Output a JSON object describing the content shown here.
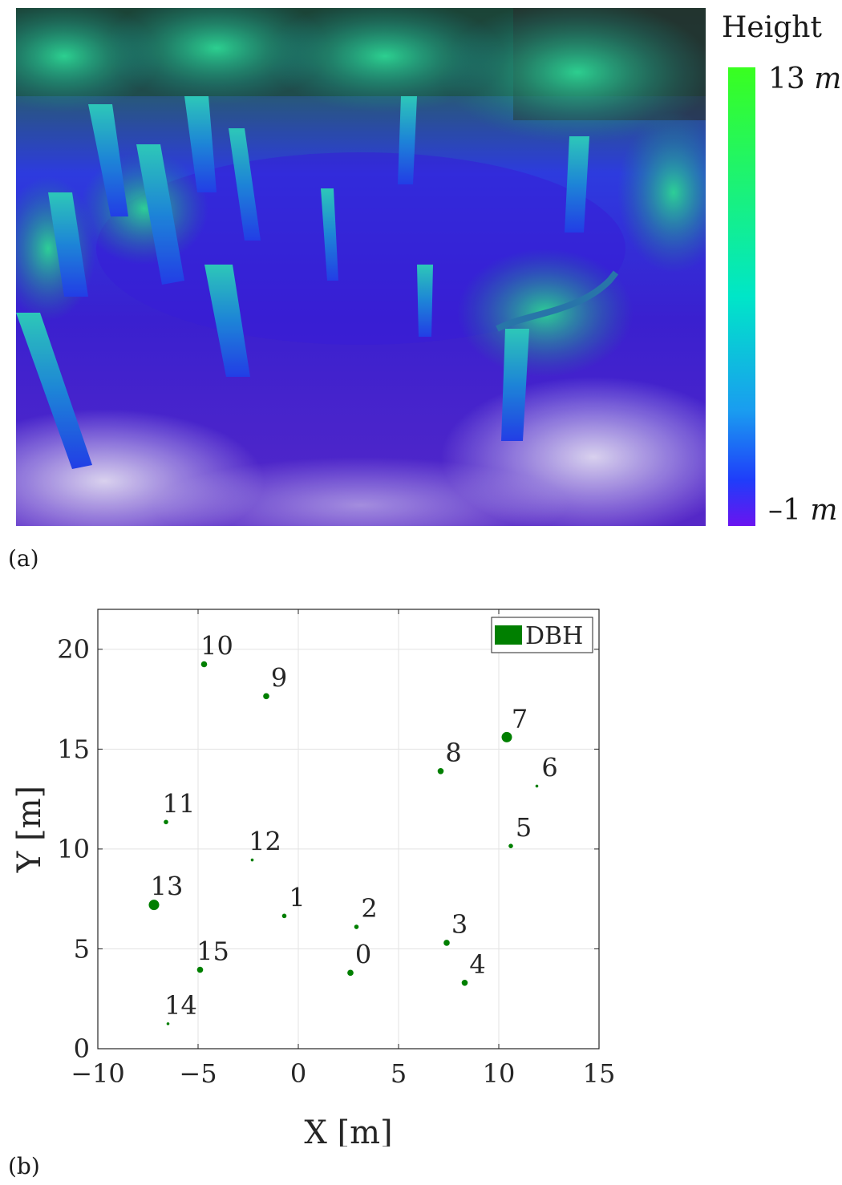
{
  "panel_a": {
    "label": "(a)",
    "colorbar": {
      "title": "Height",
      "max_label": "13",
      "min_label": "–1",
      "unit": "m",
      "colors_top_to_bottom": [
        "#39ff1f",
        "#00e6c8",
        "#1a9cf0",
        "#1f3dfa",
        "#6a14f0"
      ]
    },
    "palette": {
      "ground": "#3b1fd6",
      "trunk": "#1f8ae0",
      "canopy_top": "#25c98a",
      "bright": "#e6e2f5"
    }
  },
  "panel_b": {
    "label": "(b)"
  },
  "chart_data": {
    "type": "scatter",
    "title": "",
    "xlabel": "X [m]",
    "ylabel": "Y [m]",
    "xlim": [
      -10,
      15
    ],
    "ylim": [
      0,
      22
    ],
    "xticks": [
      -10,
      -5,
      0,
      5,
      10,
      15
    ],
    "yticks": [
      0,
      5,
      10,
      15,
      20
    ],
    "grid": true,
    "legend": {
      "entries": [
        "DBH"
      ],
      "position": "top-right"
    },
    "marker_color": "#007f00",
    "size_encodes": "DBH",
    "points": [
      {
        "id": "0",
        "x": 2.6,
        "y": 3.8,
        "size": 2
      },
      {
        "id": "1",
        "x": -0.7,
        "y": 6.65,
        "size": 1
      },
      {
        "id": "2",
        "x": 2.9,
        "y": 6.1,
        "size": 1
      },
      {
        "id": "3",
        "x": 7.4,
        "y": 5.3,
        "size": 2
      },
      {
        "id": "4",
        "x": 8.3,
        "y": 3.3,
        "size": 2
      },
      {
        "id": "5",
        "x": 10.6,
        "y": 10.15,
        "size": 1
      },
      {
        "id": "6",
        "x": 11.9,
        "y": 13.15,
        "size": 0
      },
      {
        "id": "7",
        "x": 10.4,
        "y": 15.6,
        "size": 3
      },
      {
        "id": "8",
        "x": 7.1,
        "y": 13.9,
        "size": 2
      },
      {
        "id": "9",
        "x": -1.6,
        "y": 17.65,
        "size": 2
      },
      {
        "id": "10",
        "x": -4.7,
        "y": 19.25,
        "size": 2
      },
      {
        "id": "11",
        "x": -6.6,
        "y": 11.35,
        "size": 1
      },
      {
        "id": "12",
        "x": -2.3,
        "y": 9.45,
        "size": 0
      },
      {
        "id": "13",
        "x": -7.2,
        "y": 7.2,
        "size": 3
      },
      {
        "id": "14",
        "x": -6.5,
        "y": 1.25,
        "size": 0
      },
      {
        "id": "15",
        "x": -4.9,
        "y": 3.95,
        "size": 2
      }
    ]
  }
}
